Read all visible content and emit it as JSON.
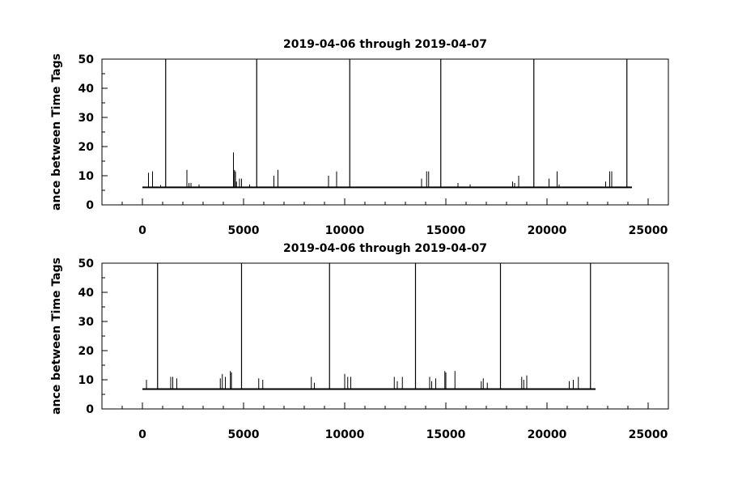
{
  "chart_data": [
    {
      "type": "line",
      "title": "2019-04-06 through 2019-04-07",
      "ylabel": "ance between Time Tags",
      "xlabel": "",
      "xlim": [
        -2000,
        26000
      ],
      "ylim": [
        0,
        50
      ],
      "x_ticks": [
        0,
        5000,
        10000,
        15000,
        20000,
        25000
      ],
      "y_ticks": [
        0,
        10,
        20,
        30,
        40,
        50
      ],
      "grid": false,
      "baseline": 6,
      "x_end": 24200,
      "series": [
        {
          "x": [
            300,
            500,
            900,
            1150,
            2200,
            2300,
            2400,
            2800,
            4500,
            4550,
            4600,
            4650,
            4800,
            4900,
            5300,
            5650,
            6500,
            6700,
            9200,
            9600,
            10250,
            13800,
            14050,
            14150,
            14750,
            15600,
            16200,
            18300,
            18400,
            18600,
            19350,
            20100,
            20500,
            20600,
            22900,
            23100,
            23200,
            23950
          ],
          "y": [
            11,
            11.5,
            6.8,
            50,
            12,
            7.5,
            7.5,
            7,
            18,
            12,
            11.5,
            8,
            9,
            9,
            7,
            50,
            10,
            12,
            10,
            11.5,
            50,
            9,
            11.5,
            11.5,
            50,
            7.5,
            7,
            8,
            7.5,
            10,
            50,
            9,
            11.5,
            7,
            8,
            11.5,
            11.5,
            50
          ]
        }
      ]
    },
    {
      "type": "line",
      "title": "2019-04-06 through 2019-04-07",
      "ylabel": "ance between Time Tags",
      "xlabel": "",
      "xlim": [
        -2000,
        26000
      ],
      "ylim": [
        0,
        50
      ],
      "x_ticks": [
        0,
        5000,
        10000,
        15000,
        20000,
        25000
      ],
      "y_ticks": [
        0,
        10,
        20,
        30,
        40,
        50
      ],
      "grid": false,
      "baseline": 6.8,
      "x_end": 22400,
      "series": [
        {
          "x": [
            200,
            750,
            1400,
            1500,
            1700,
            3850,
            3950,
            4100,
            4350,
            4400,
            4900,
            5750,
            5950,
            8350,
            8500,
            9250,
            10000,
            10150,
            10300,
            12450,
            12600,
            12850,
            13500,
            14200,
            14300,
            14500,
            14950,
            15000,
            15450,
            16750,
            16850,
            17050,
            17700,
            18750,
            18850,
            19000,
            21100,
            21300,
            21550,
            22150
          ],
          "y": [
            10,
            50,
            11,
            11,
            10.5,
            10.5,
            12,
            11,
            13,
            12.5,
            50,
            10.5,
            10,
            11,
            9,
            50,
            12,
            11,
            11,
            11,
            9.5,
            11,
            50,
            11,
            9.5,
            10.5,
            13,
            12.5,
            13,
            9.5,
            10.5,
            9,
            50,
            11,
            10,
            11.5,
            9.5,
            10,
            11,
            50
          ]
        }
      ]
    }
  ]
}
